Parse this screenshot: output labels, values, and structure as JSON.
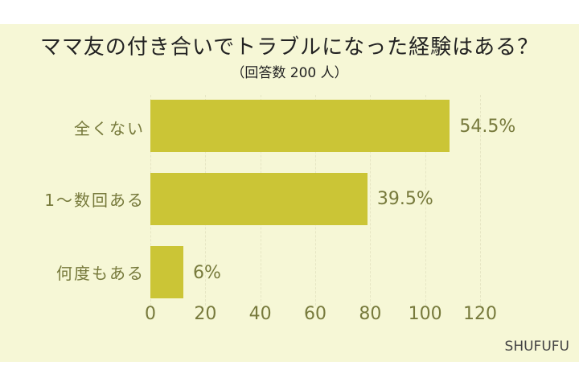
{
  "chart_data": {
    "type": "bar",
    "orientation": "horizontal",
    "title": "ママ友の付き合いでトラブルになった経験はある？",
    "subtitle": "（回答数 200 人）",
    "categories": [
      "全くない",
      "1～数回ある",
      "何度もある"
    ],
    "values": [
      109,
      79,
      12
    ],
    "value_labels": [
      "54.5%",
      "39.5%",
      "6%"
    ],
    "percentages": [
      54.5,
      39.5,
      6
    ],
    "xlabel": "",
    "ylabel": "",
    "xlim": [
      0,
      120
    ],
    "xticks": [
      "0",
      "20",
      "40",
      "60",
      "80",
      "100",
      "120"
    ],
    "grid": true,
    "legend": null,
    "bar_color": "#cbc536",
    "background_color": "#f6f7d6"
  },
  "header": {
    "title": "ママ友の付き合いでトラブルになった経験はある？",
    "subtitle": "（回答数 200 人）"
  },
  "footer": {
    "brand": "SHUFUFU"
  }
}
